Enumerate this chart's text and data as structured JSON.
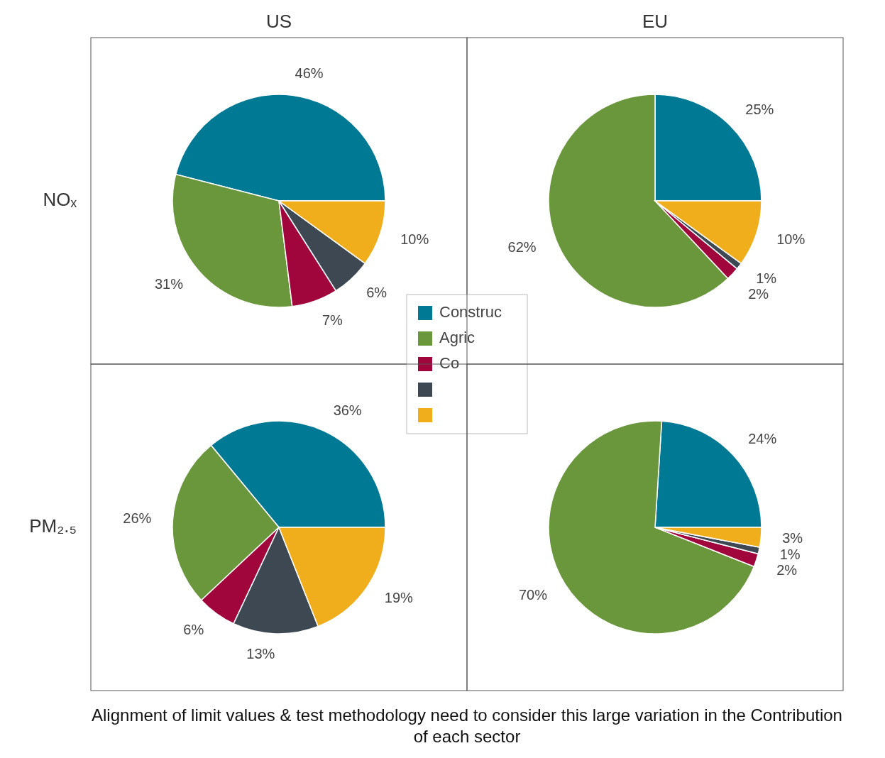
{
  "chart_data": [
    {
      "type": "pie",
      "title": "US",
      "ylabel": "NOₓ",
      "categories": [
        "Construc",
        "Agric",
        "Co",
        null,
        null
      ],
      "values": [
        46,
        31,
        7,
        6,
        10
      ],
      "value_labels": [
        "46%",
        "31%",
        "7%",
        "6%",
        "10%"
      ],
      "colors": [
        "#007a94",
        "#6a973c",
        "#a0063c",
        "#3d4853",
        "#f0ae1c"
      ],
      "legend": "bottom right"
    },
    {
      "type": "pie",
      "title": "EU",
      "categories": [
        null,
        null,
        null,
        null,
        null
      ],
      "values": [
        25,
        62,
        2,
        1,
        10
      ],
      "value_labels": [
        "25%",
        "62%",
        "2%",
        "1%",
        "10%"
      ],
      "colors": [
        "#007a94",
        "#6a973c",
        "#a0063c",
        "#3d4853",
        "#f0ae1c"
      ]
    },
    {
      "type": "pie",
      "ylabel": "PM₂.₅",
      "categories": [
        null,
        null,
        null,
        null,
        null
      ],
      "values": [
        36,
        26,
        6,
        13,
        19
      ],
      "value_labels": [
        "36%",
        "26%",
        "6%",
        "13%",
        "19%"
      ],
      "colors": [
        "#007a94",
        "#6a973c",
        "#a0063c",
        "#3d4853",
        "#f0ae1c"
      ]
    },
    {
      "type": "pie",
      "categories": [
        null,
        null,
        null,
        null,
        null
      ],
      "values": [
        24,
        70,
        2,
        1,
        3
      ],
      "value_labels": [
        "24%",
        "70%",
        "2%",
        "1%",
        "3%"
      ],
      "colors": [
        "#007a94",
        "#6a973c",
        "#a0063c",
        "#3d4853",
        "#f0ae1c"
      ]
    },
    {
      "type": "other",
      "title": "Alignment of limit values & test methodology need to consider this large variation in the Contribution of each sector"
    }
  ]
}
